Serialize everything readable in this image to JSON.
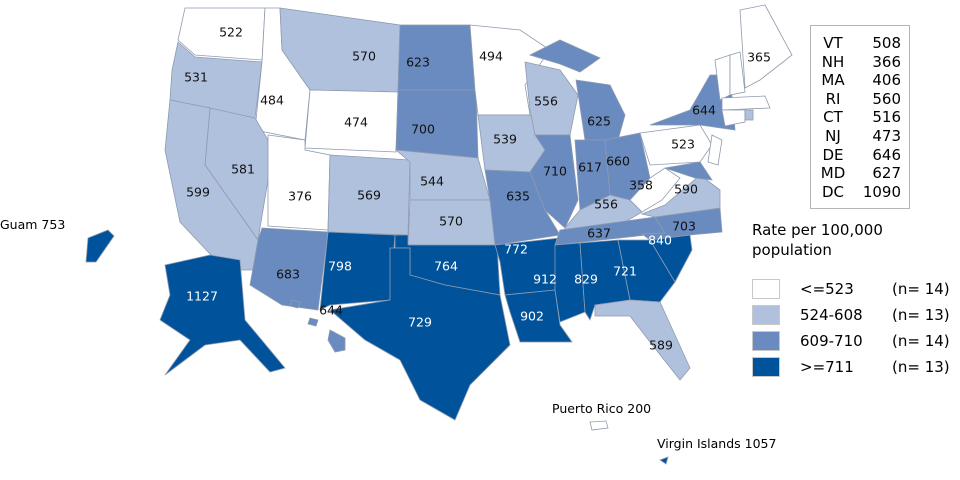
{
  "colors": {
    "bin1": "#ffffff",
    "bin2": "#b0c1de",
    "bin3": "#6a8bbf",
    "bin4": "#00529b",
    "border": "#8e9bb0"
  },
  "states": [
    {
      "abbr": "WA",
      "value": 522
    },
    {
      "abbr": "OR",
      "value": 531
    },
    {
      "abbr": "CA",
      "value": 599
    },
    {
      "abbr": "ID",
      "value": 484
    },
    {
      "abbr": "NV",
      "value": 581
    },
    {
      "abbr": "MT",
      "value": 570
    },
    {
      "abbr": "WY",
      "value": 474
    },
    {
      "abbr": "UT",
      "value": 376
    },
    {
      "abbr": "AZ",
      "value": 683
    },
    {
      "abbr": "CO",
      "value": 569
    },
    {
      "abbr": "NM",
      "value": 798
    },
    {
      "abbr": "ND",
      "value": 623
    },
    {
      "abbr": "SD",
      "value": 700
    },
    {
      "abbr": "NE",
      "value": 544
    },
    {
      "abbr": "KS",
      "value": 570
    },
    {
      "abbr": "OK",
      "value": 764
    },
    {
      "abbr": "TX",
      "value": 729
    },
    {
      "abbr": "MN",
      "value": 494
    },
    {
      "abbr": "IA",
      "value": 539
    },
    {
      "abbr": "MO",
      "value": 635
    },
    {
      "abbr": "AR",
      "value": 772
    },
    {
      "abbr": "LA",
      "value": 902
    },
    {
      "abbr": "WI",
      "value": 556
    },
    {
      "abbr": "IL",
      "value": 710
    },
    {
      "abbr": "MI",
      "value": 625
    },
    {
      "abbr": "IN",
      "value": 617
    },
    {
      "abbr": "OH",
      "value": 660
    },
    {
      "abbr": "KY",
      "value": 556
    },
    {
      "abbr": "TN",
      "value": 637
    },
    {
      "abbr": "MS",
      "value": 912
    },
    {
      "abbr": "AL",
      "value": 829
    },
    {
      "abbr": "GA",
      "value": 721
    },
    {
      "abbr": "FL",
      "value": 589
    },
    {
      "abbr": "SC",
      "value": 840
    },
    {
      "abbr": "NC",
      "value": 703
    },
    {
      "abbr": "VA",
      "value": 590
    },
    {
      "abbr": "WV",
      "value": 358
    },
    {
      "abbr": "PA",
      "value": 523
    },
    {
      "abbr": "NY",
      "value": 644
    },
    {
      "abbr": "ME",
      "value": 365
    },
    {
      "abbr": "AK",
      "value": 1127
    },
    {
      "abbr": "HI",
      "value": 644
    }
  ],
  "small_states": [
    {
      "abbr": "VT",
      "value": "508"
    },
    {
      "abbr": "NH",
      "value": "366"
    },
    {
      "abbr": "MA",
      "value": "406"
    },
    {
      "abbr": "RI",
      "value": "560"
    },
    {
      "abbr": "CT",
      "value": "516"
    },
    {
      "abbr": "NJ",
      "value": "473"
    },
    {
      "abbr": "DE",
      "value": "646"
    },
    {
      "abbr": "MD",
      "value": "627"
    },
    {
      "abbr": "DC",
      "value": "1090"
    }
  ],
  "territories": {
    "guam": "Guam 753",
    "puerto_rico": "Puerto Rico 200",
    "virgin_islands": "Virgin Islands 1057"
  },
  "legend": {
    "title": "Rate per 100,000 population",
    "items": [
      {
        "range": "<=523",
        "count": "(n= 14)",
        "color": "#ffffff"
      },
      {
        "range": "524-608",
        "count": "(n= 13)",
        "color": "#b0c1de"
      },
      {
        "range": "609-710",
        "count": "(n= 14)",
        "color": "#6a8bbf"
      },
      {
        "range": ">=711",
        "count": "(n= 13)",
        "color": "#00529b"
      }
    ]
  }
}
